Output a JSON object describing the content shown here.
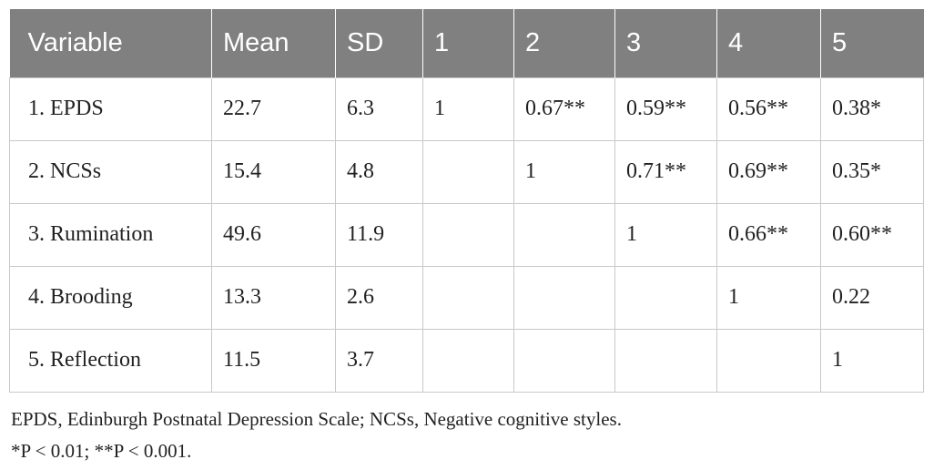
{
  "table": {
    "headers": [
      "Variable",
      "Mean",
      "SD",
      "1",
      "2",
      "3",
      "4",
      "5"
    ],
    "rows": [
      [
        "1. EPDS",
        "22.7",
        "6.3",
        "1",
        "0.67**",
        "0.59**",
        "0.56**",
        "0.38*"
      ],
      [
        "2. NCSs",
        "15.4",
        "4.8",
        "",
        "1",
        "0.71**",
        "0.69**",
        "0.35*"
      ],
      [
        "3. Rumination",
        "49.6",
        "11.9",
        "",
        "",
        "1",
        "0.66**",
        "0.60**"
      ],
      [
        "4. Brooding",
        "13.3",
        "2.6",
        "",
        "",
        "",
        "1",
        "0.22"
      ],
      [
        "5. Reflection",
        "11.5",
        "3.7",
        "",
        "",
        "",
        "",
        "1"
      ]
    ]
  },
  "notes": {
    "abbreviations": "EPDS, Edinburgh Postnatal Depression Scale; NCSs, Negative cognitive styles.",
    "significance": "*P < 0.01; **P < 0.001."
  },
  "colors": {
    "header_background": "#808080",
    "header_text": "#ffffff",
    "grid_lines": "#c8c8c8",
    "body_text": "#222222"
  }
}
